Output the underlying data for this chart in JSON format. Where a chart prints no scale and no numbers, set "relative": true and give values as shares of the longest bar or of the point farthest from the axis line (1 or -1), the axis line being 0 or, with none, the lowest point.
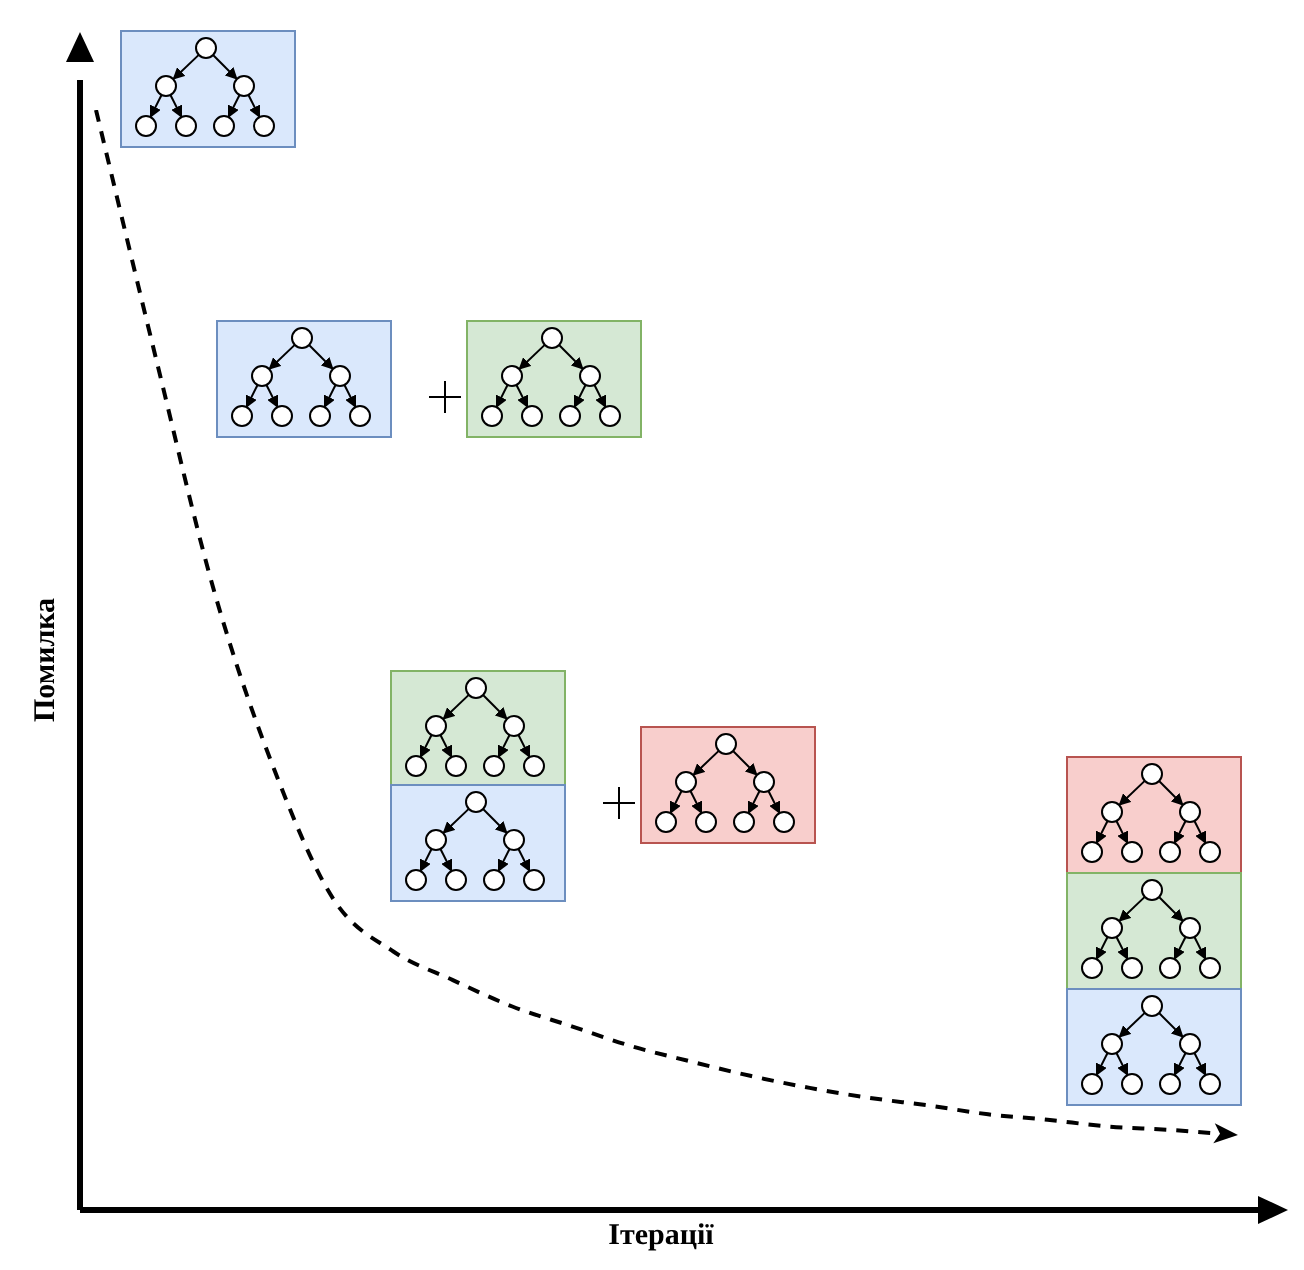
{
  "chart_data": {
    "type": "line",
    "xlabel": "Ітерації",
    "ylabel": "Помилка",
    "relative": true,
    "line_style": "dashed",
    "marker": "none",
    "grid": false,
    "legend": false,
    "categories": [
      null,
      null,
      null,
      null,
      null,
      null,
      null,
      null,
      null,
      null,
      null,
      null,
      null,
      null,
      null,
      null,
      null,
      null,
      null,
      null
    ],
    "series": [
      {
        "color": "#000000",
        "values": [
          1,
          0.776,
          0.56,
          0.4,
          0.282,
          0.235,
          0.209,
          0.185,
          0.167,
          0.149,
          0.135,
          0.122,
          0.111,
          0.102,
          0.095,
          0.087,
          0.082,
          0.076,
          0.073,
          0.069
        ]
      }
    ]
  }
}
